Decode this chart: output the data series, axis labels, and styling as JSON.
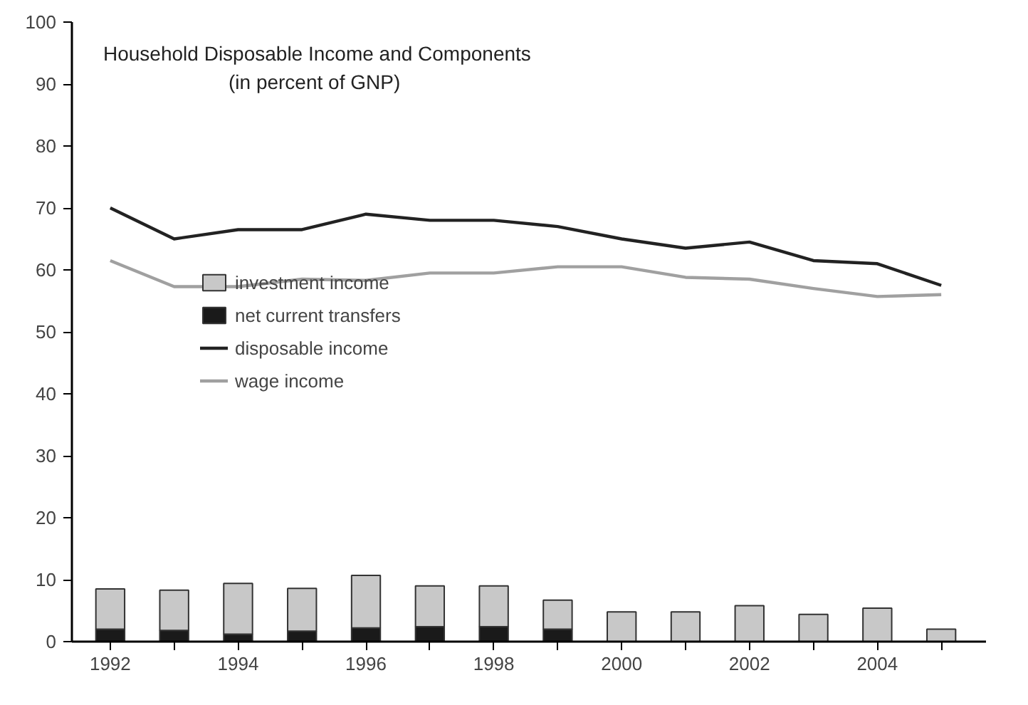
{
  "chart_data": {
    "type": "bar",
    "title": "Household Disposable Income and Components",
    "subtitle": "(in percent of GNP)",
    "x": [
      1992,
      1993,
      1994,
      1995,
      1996,
      1997,
      1998,
      1999,
      2000,
      2001,
      2002,
      2003,
      2004,
      2005
    ],
    "stacked": true,
    "series": [
      {
        "name": "net current transfers",
        "color": "#1a1a1a",
        "values": [
          2.0,
          1.8,
          1.2,
          1.7,
          2.2,
          2.4,
          2.4,
          2.0,
          null,
          null,
          null,
          null,
          null,
          null
        ]
      },
      {
        "name": "investment income",
        "color": "#c8c8c8",
        "values": [
          6.5,
          6.5,
          8.2,
          6.9,
          8.5,
          6.6,
          6.6,
          4.7,
          4.8,
          4.8,
          5.8,
          4.4,
          5.4,
          2.0
        ]
      },
      {
        "name": "disposable income",
        "type": "line",
        "color": "#222222",
        "values": [
          70,
          65,
          66.5,
          66.5,
          69,
          68,
          68,
          67,
          65,
          63.5,
          64.5,
          61.5,
          61,
          57.5
        ]
      },
      {
        "name": "wage income",
        "type": "line",
        "color": "#a0a0a0",
        "values": [
          61.5,
          57.3,
          57.3,
          58.5,
          58.3,
          59.5,
          59.5,
          60.5,
          60.5,
          58.8,
          58.5,
          57,
          55.7,
          56
        ]
      }
    ],
    "xlim": [
      1991.4,
      2005.7
    ],
    "xticks": [
      1992,
      {
        "value": 1993,
        "label": null
      },
      1994,
      {
        "value": 1995,
        "label": null
      },
      1996,
      {
        "value": 1997,
        "label": null
      },
      1998,
      {
        "value": 1999,
        "label": null
      },
      2000,
      {
        "value": 2001,
        "label": null
      },
      2002,
      {
        "value": 2003,
        "label": null
      },
      2004,
      {
        "value": 2005,
        "label": null
      }
    ],
    "ylim": [
      0,
      100
    ],
    "yticks": [
      0,
      10,
      20,
      30,
      40,
      50,
      60,
      70,
      80,
      90,
      100
    ],
    "legend": "center left",
    "grid": false,
    "line_style": "solid",
    "marker": "none"
  }
}
